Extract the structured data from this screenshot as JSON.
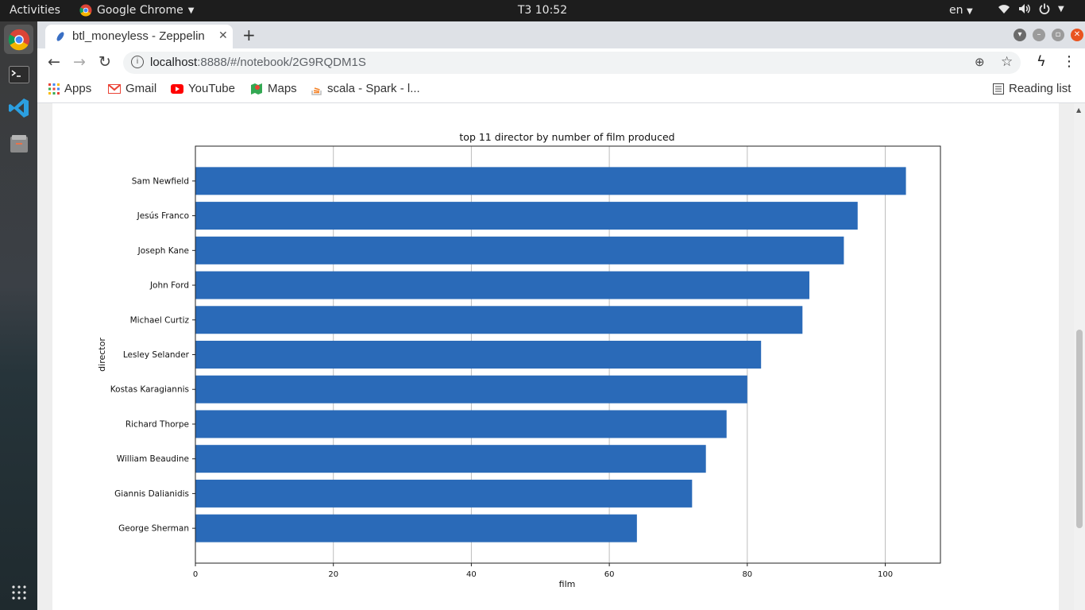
{
  "topbar": {
    "activities": "Activities",
    "app_name": "Google Chrome",
    "clock": "T3 10:52",
    "language": "en"
  },
  "browser": {
    "tab_title": "btl_moneyless - Zeppelin",
    "url_host": "localhost",
    "url_path": ":8888/#/notebook/2G9RQDM1S",
    "bookmarks": [
      "Apps",
      "Gmail",
      "YouTube",
      "Maps",
      "scala - Spark - l..."
    ],
    "reading_list": "Reading list"
  },
  "chart_data": {
    "type": "bar",
    "orientation": "horizontal",
    "title": "top 11 director by number of film produced",
    "xlabel": "film",
    "ylabel": "director",
    "xlim": [
      0,
      108
    ],
    "xticks": [
      0,
      20,
      40,
      60,
      80,
      100
    ],
    "grid": "vertical",
    "bar_color": "#2a6ab8",
    "categories": [
      "Sam Newfield",
      "Jesús Franco",
      "Joseph Kane",
      "John Ford",
      "Michael Curtiz",
      "Lesley Selander",
      "Kostas Karagiannis",
      "Richard Thorpe",
      "William Beaudine",
      "Giannis Dalianidis",
      "George Sherman"
    ],
    "values": [
      103,
      96,
      94,
      89,
      88,
      82,
      80,
      77,
      74,
      72,
      64
    ]
  }
}
